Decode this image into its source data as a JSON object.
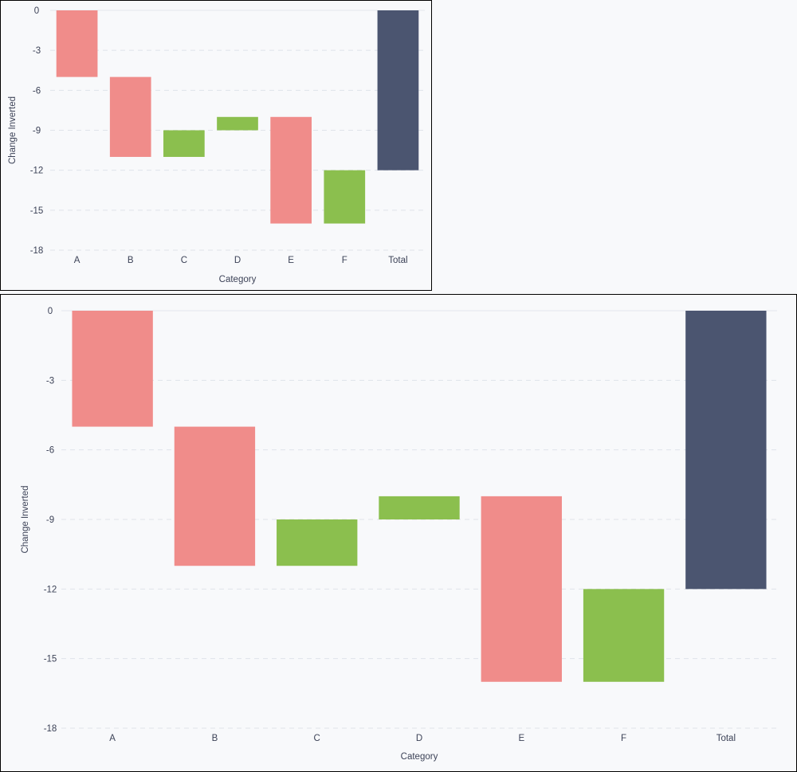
{
  "chart_data": [
    {
      "type": "bar",
      "subtype": "waterfall",
      "categories": [
        "A",
        "B",
        "C",
        "D",
        "E",
        "F",
        "Total"
      ],
      "bars": [
        {
          "category": "A",
          "start": 0,
          "end": -5,
          "kind": "decrease"
        },
        {
          "category": "B",
          "start": -5,
          "end": -11,
          "kind": "decrease"
        },
        {
          "category": "C",
          "start": -11,
          "end": -9,
          "kind": "increase"
        },
        {
          "category": "D",
          "start": -9,
          "end": -8,
          "kind": "increase"
        },
        {
          "category": "E",
          "start": -8,
          "end": -16,
          "kind": "decrease"
        },
        {
          "category": "F",
          "start": -16,
          "end": -12,
          "kind": "increase"
        },
        {
          "category": "Total",
          "start": 0,
          "end": -12,
          "kind": "total"
        }
      ],
      "xlabel": "Category",
      "ylabel": "Change Inverted",
      "ylim": [
        -18,
        0
      ],
      "yticks": [
        0,
        -3,
        -6,
        -9,
        -12,
        -15,
        -18
      ],
      "grid": "horizontal dashed",
      "colors": {
        "decrease": "#f08c8a",
        "increase": "#8bbf4e",
        "total": "#4b5570"
      }
    },
    {
      "type": "bar",
      "subtype": "waterfall",
      "categories": [
        "A",
        "B",
        "C",
        "D",
        "E",
        "F",
        "Total"
      ],
      "bars": [
        {
          "category": "A",
          "start": 0,
          "end": -5,
          "kind": "decrease"
        },
        {
          "category": "B",
          "start": -5,
          "end": -11,
          "kind": "decrease"
        },
        {
          "category": "C",
          "start": -11,
          "end": -9,
          "kind": "increase"
        },
        {
          "category": "D",
          "start": -9,
          "end": -8,
          "kind": "increase"
        },
        {
          "category": "E",
          "start": -8,
          "end": -16,
          "kind": "decrease"
        },
        {
          "category": "F",
          "start": -16,
          "end": -12,
          "kind": "increase"
        },
        {
          "category": "Total",
          "start": 0,
          "end": -12,
          "kind": "total"
        }
      ],
      "xlabel": "Category",
      "ylabel": "Change Inverted",
      "ylim": [
        -18,
        0
      ],
      "yticks": [
        0,
        -3,
        -6,
        -9,
        -12,
        -15,
        -18
      ],
      "grid": "horizontal dashed",
      "colors": {
        "decrease": "#f08c8a",
        "increase": "#8bbf4e",
        "total": "#4b5570"
      }
    }
  ]
}
